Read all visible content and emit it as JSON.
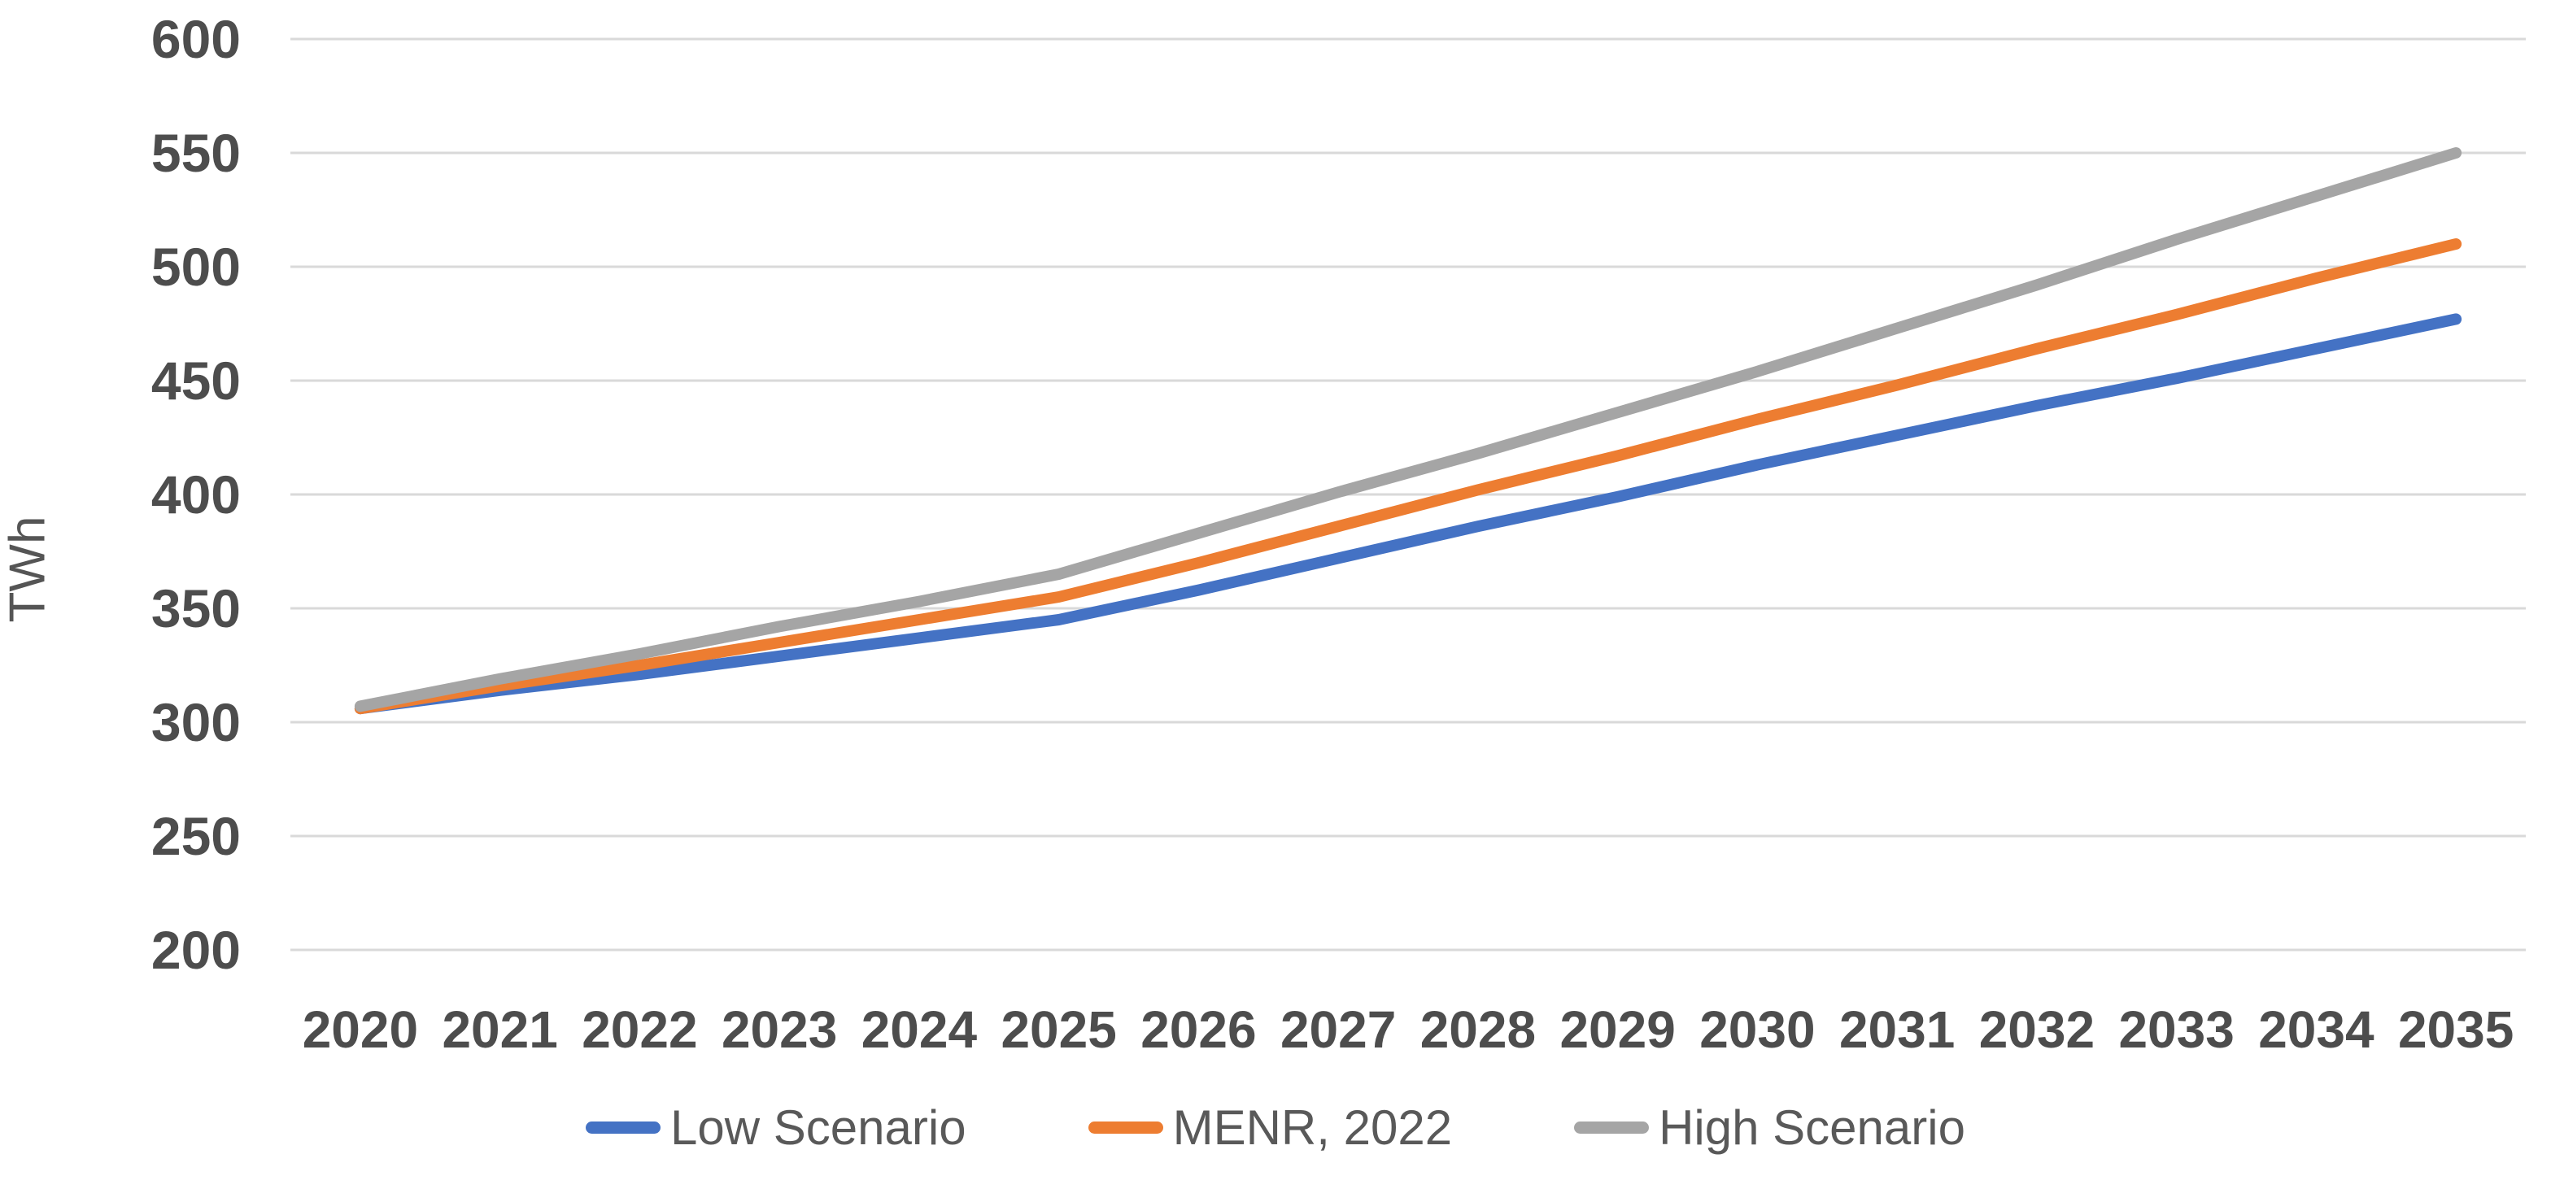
{
  "chart_data": {
    "type": "line",
    "title": "",
    "xlabel": "",
    "ylabel": "TWh",
    "ylim": [
      200,
      600
    ],
    "yticks": [
      200,
      250,
      300,
      350,
      400,
      450,
      500,
      550,
      600
    ],
    "grid": "horizontal",
    "legend_position": "bottom",
    "x": [
      "2020",
      "2021",
      "2022",
      "2023",
      "2024",
      "2025",
      "2026",
      "2027",
      "2028",
      "2029",
      "2030",
      "2031",
      "2032",
      "2033",
      "2034",
      "2035"
    ],
    "series": [
      {
        "name": "Low Scenario",
        "color": "#4472C4",
        "values": [
          306,
          314,
          321,
          329,
          337,
          345,
          358,
          372,
          386,
          399,
          413,
          426,
          439,
          451,
          464,
          477
        ]
      },
      {
        "name": "MENR, 2022",
        "color": "#ED7D31",
        "values": [
          306,
          316,
          325,
          335,
          345,
          355,
          370,
          386,
          402,
          417,
          433,
          448,
          464,
          479,
          495,
          510
        ]
      },
      {
        "name": "High Scenario",
        "color": "#A5A5A5",
        "values": [
          307,
          319,
          330,
          342,
          353,
          365,
          383,
          401,
          418,
          436,
          454,
          473,
          492,
          512,
          531,
          550
        ]
      }
    ],
    "gridline_color": "#D9D9D9"
  }
}
